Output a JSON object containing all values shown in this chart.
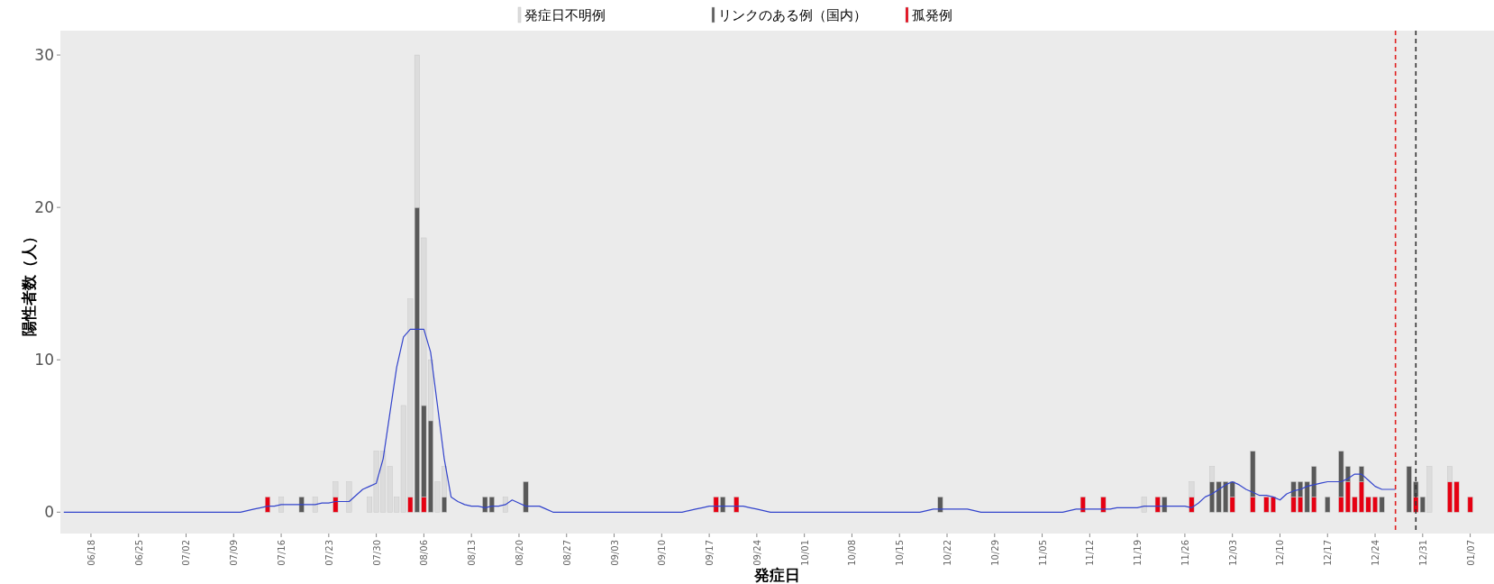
{
  "chart_data": {
    "type": "bar",
    "stacked": true,
    "xlabel": "発症日",
    "ylabel": "陽性者数（人）",
    "legend": "top",
    "marker": "none",
    "grid": false,
    "ylim": [
      -1.4,
      31.6
    ],
    "yticks": [
      0,
      10,
      20,
      30
    ],
    "categories": [
      null,
      null,
      null,
      null,
      "06/18",
      null,
      null,
      null,
      null,
      null,
      null,
      "06/25",
      null,
      null,
      null,
      null,
      null,
      null,
      "07/02",
      null,
      null,
      null,
      null,
      null,
      null,
      "07/09",
      null,
      null,
      null,
      null,
      null,
      null,
      "07/16",
      null,
      null,
      null,
      null,
      null,
      null,
      "07/23",
      null,
      null,
      null,
      null,
      null,
      null,
      "07/30",
      null,
      null,
      null,
      null,
      null,
      null,
      "08/06",
      null,
      null,
      null,
      null,
      null,
      null,
      "08/13",
      null,
      null,
      null,
      null,
      null,
      null,
      "08/20",
      null,
      null,
      null,
      null,
      null,
      null,
      "08/27",
      null,
      null,
      null,
      null,
      null,
      null,
      "09/03",
      null,
      null,
      null,
      null,
      null,
      null,
      "09/10",
      null,
      null,
      null,
      null,
      null,
      null,
      "09/17",
      null,
      null,
      null,
      null,
      null,
      null,
      "09/24",
      null,
      null,
      null,
      null,
      null,
      null,
      "10/01",
      null,
      null,
      null,
      null,
      null,
      null,
      "10/08",
      null,
      null,
      null,
      null,
      null,
      null,
      "10/15",
      null,
      null,
      null,
      null,
      null,
      null,
      "10/22",
      null,
      null,
      null,
      null,
      null,
      null,
      "10/29",
      null,
      null,
      null,
      null,
      null,
      null,
      "11/05",
      null,
      null,
      null,
      null,
      null,
      null,
      "11/12",
      null,
      null,
      null,
      null,
      null,
      null,
      "11/19",
      null,
      null,
      null,
      null,
      null,
      null,
      "11/26",
      null,
      null,
      null,
      null,
      null,
      null,
      "12/03",
      null,
      null,
      null,
      null,
      null,
      null,
      "12/10",
      null,
      null,
      null,
      null,
      null,
      null,
      "12/17",
      null,
      null,
      null,
      null,
      null,
      null,
      "12/24",
      null,
      null,
      null,
      null,
      null,
      null,
      "12/31",
      null,
      null,
      null,
      null,
      null,
      null,
      "01/07",
      null,
      null,
      null
    ],
    "series": [
      {
        "name": "孤発例",
        "color": "#e60012",
        "values": [
          null,
          null,
          null,
          null,
          null,
          null,
          null,
          null,
          null,
          null,
          null,
          null,
          null,
          null,
          null,
          null,
          null,
          null,
          null,
          null,
          null,
          null,
          null,
          null,
          null,
          null,
          null,
          null,
          null,
          null,
          1,
          null,
          null,
          null,
          null,
          null,
          null,
          null,
          null,
          null,
          1,
          null,
          null,
          null,
          null,
          null,
          null,
          null,
          null,
          null,
          null,
          1,
          null,
          1,
          null,
          null,
          null,
          null,
          null,
          null,
          null,
          null,
          null,
          null,
          null,
          null,
          null,
          null,
          null,
          null,
          null,
          null,
          null,
          null,
          null,
          null,
          null,
          null,
          null,
          null,
          null,
          null,
          null,
          null,
          null,
          null,
          null,
          null,
          null,
          null,
          null,
          null,
          null,
          null,
          null,
          null,
          1,
          null,
          null,
          1,
          null,
          null,
          null,
          null,
          null,
          null,
          null,
          null,
          null,
          null,
          null,
          null,
          null,
          null,
          null,
          null,
          null,
          null,
          null,
          null,
          null,
          null,
          null,
          null,
          null,
          null,
          null,
          null,
          null,
          null,
          null,
          null,
          null,
          null,
          null,
          null,
          null,
          null,
          null,
          null,
          null,
          null,
          null,
          null,
          null,
          null,
          null,
          null,
          null,
          null,
          1,
          null,
          null,
          1,
          null,
          null,
          null,
          null,
          null,
          null,
          null,
          1,
          null,
          null,
          null,
          null,
          1,
          null,
          null,
          null,
          null,
          null,
          1,
          null,
          null,
          1,
          null,
          1,
          1,
          null,
          null,
          1,
          1,
          null,
          1,
          null,
          null,
          null,
          1,
          2,
          1,
          2,
          1,
          1,
          null,
          null,
          null,
          null,
          null,
          1,
          null,
          null,
          null,
          null,
          2,
          2,
          null,
          1,
          null,
          null,
          null
        ]
      },
      {
        "name": "リンクのある例（国内）",
        "color": "#595959",
        "values": [
          null,
          null,
          null,
          null,
          null,
          null,
          null,
          null,
          null,
          null,
          null,
          null,
          null,
          null,
          null,
          null,
          null,
          null,
          null,
          null,
          null,
          null,
          null,
          null,
          null,
          null,
          null,
          null,
          null,
          null,
          null,
          null,
          null,
          null,
          null,
          1,
          null,
          null,
          null,
          null,
          null,
          null,
          null,
          null,
          null,
          null,
          null,
          null,
          null,
          null,
          null,
          null,
          20,
          6,
          6,
          null,
          1,
          null,
          null,
          null,
          null,
          null,
          1,
          1,
          null,
          null,
          null,
          null,
          2,
          null,
          null,
          null,
          null,
          null,
          null,
          null,
          null,
          null,
          null,
          null,
          null,
          null,
          null,
          null,
          null,
          null,
          null,
          null,
          null,
          null,
          null,
          null,
          null,
          null,
          null,
          null,
          null,
          1,
          null,
          null,
          null,
          null,
          null,
          null,
          null,
          null,
          null,
          null,
          null,
          null,
          null,
          null,
          null,
          null,
          null,
          null,
          null,
          null,
          null,
          null,
          null,
          null,
          null,
          null,
          null,
          null,
          null,
          null,
          null,
          1,
          null,
          null,
          null,
          null,
          null,
          null,
          null,
          null,
          null,
          null,
          null,
          null,
          null,
          null,
          null,
          null,
          null,
          null,
          null,
          null,
          null,
          null,
          null,
          null,
          null,
          null,
          null,
          null,
          null,
          null,
          null,
          null,
          1,
          null,
          null,
          null,
          null,
          null,
          null,
          2,
          2,
          2,
          1,
          null,
          null,
          3,
          null,
          null,
          null,
          null,
          null,
          1,
          1,
          2,
          2,
          null,
          1,
          null,
          3,
          1,
          null,
          1,
          null,
          null,
          1,
          null,
          null,
          null,
          3,
          1,
          1,
          null,
          null,
          null,
          null,
          null,
          null,
          null,
          null,
          null,
          null
        ]
      },
      {
        "name": "発症日不明例",
        "color": "#dcdcdc",
        "values": [
          null,
          null,
          null,
          null,
          null,
          null,
          null,
          null,
          null,
          null,
          null,
          null,
          null,
          null,
          null,
          null,
          null,
          null,
          null,
          null,
          null,
          null,
          null,
          null,
          null,
          null,
          null,
          null,
          null,
          null,
          null,
          null,
          1,
          null,
          null,
          null,
          null,
          1,
          null,
          null,
          1,
          null,
          2,
          null,
          null,
          1,
          4,
          4,
          3,
          1,
          7,
          13,
          10,
          11,
          4,
          2,
          2,
          null,
          null,
          null,
          null,
          null,
          null,
          null,
          null,
          1,
          null,
          null,
          null,
          null,
          null,
          null,
          null,
          null,
          null,
          null,
          null,
          null,
          null,
          null,
          null,
          null,
          null,
          null,
          null,
          null,
          null,
          null,
          null,
          null,
          null,
          null,
          null,
          null,
          null,
          null,
          null,
          null,
          null,
          null,
          null,
          null,
          null,
          null,
          null,
          null,
          null,
          null,
          null,
          null,
          null,
          null,
          null,
          null,
          null,
          null,
          null,
          null,
          null,
          null,
          null,
          null,
          null,
          null,
          null,
          null,
          null,
          null,
          null,
          null,
          null,
          null,
          null,
          null,
          null,
          null,
          null,
          null,
          null,
          null,
          null,
          null,
          null,
          null,
          null,
          null,
          null,
          null,
          null,
          null,
          null,
          null,
          null,
          null,
          null,
          null,
          null,
          null,
          null,
          1,
          null,
          null,
          null,
          null,
          null,
          null,
          1,
          null,
          null,
          1,
          null,
          null,
          null,
          null,
          null,
          null,
          null,
          null,
          null,
          null,
          null,
          null,
          null,
          null,
          null,
          null,
          null,
          null,
          null,
          null,
          null,
          null,
          null,
          null,
          null,
          null,
          null,
          null,
          null,
          null,
          null,
          3,
          null,
          null,
          1,
          null,
          null,
          null,
          null,
          null,
          null
        ]
      },
      {
        "type": "line",
        "color": "#3344cc",
        "values": [
          0,
          0,
          0,
          0,
          0,
          0,
          0,
          0,
          0,
          0,
          0,
          0,
          0,
          0,
          0,
          0,
          0,
          0,
          0,
          0,
          0,
          0,
          0,
          0,
          0,
          0,
          0,
          0.1,
          0.2,
          0.3,
          0.4,
          0.4,
          0.5,
          0.5,
          0.5,
          0.5,
          0.5,
          0.5,
          0.6,
          0.6,
          0.7,
          0.7,
          0.7,
          1.1,
          1.5,
          1.7,
          1.9,
          3.5,
          6.5,
          9.5,
          11.5,
          12,
          12,
          12,
          10.5,
          7,
          3.5,
          1,
          0.7,
          0.5,
          0.4,
          0.4,
          0.3,
          0.4,
          0.4,
          0.5,
          0.8,
          0.6,
          0.4,
          0.4,
          0.4,
          0.2,
          0,
          0,
          0,
          0,
          0,
          0,
          0,
          0,
          0,
          0,
          0,
          0,
          0,
          0,
          0,
          0,
          0,
          0,
          0,
          0,
          0.1,
          0.2,
          0.3,
          0.4,
          0.4,
          0.4,
          0.4,
          0.4,
          0.4,
          0.3,
          0.2,
          0.1,
          0,
          0,
          0,
          0,
          0,
          0,
          0,
          0,
          0,
          0,
          0,
          0,
          0,
          0,
          0,
          0,
          0,
          0,
          0,
          0,
          0,
          0,
          0,
          0.1,
          0.2,
          0.2,
          0.2,
          0.2,
          0.2,
          0.2,
          0.1,
          0,
          0,
          0,
          0,
          0,
          0,
          0,
          0,
          0,
          0,
          0,
          0,
          0,
          0.1,
          0.2,
          0.2,
          0.2,
          0.2,
          0.2,
          0.2,
          0.3,
          0.3,
          0.3,
          0.3,
          0.4,
          0.4,
          0.4,
          0.4,
          0.4,
          0.4,
          0.4,
          0.3,
          0.6,
          1,
          1.2,
          1.5,
          1.8,
          2,
          1.8,
          1.5,
          1.3,
          1.1,
          1.1,
          1,
          0.8,
          1.2,
          1.4,
          1.5,
          1.7,
          1.8,
          1.9,
          2,
          2,
          2,
          2.2,
          2.5,
          2.5,
          2.1,
          1.7,
          1.5,
          1.5,
          1.5,
          null,
          null,
          null,
          null,
          null,
          null,
          null,
          null,
          null,
          null,
          null,
          null,
          null,
          null
        ]
      }
    ]
  }
}
